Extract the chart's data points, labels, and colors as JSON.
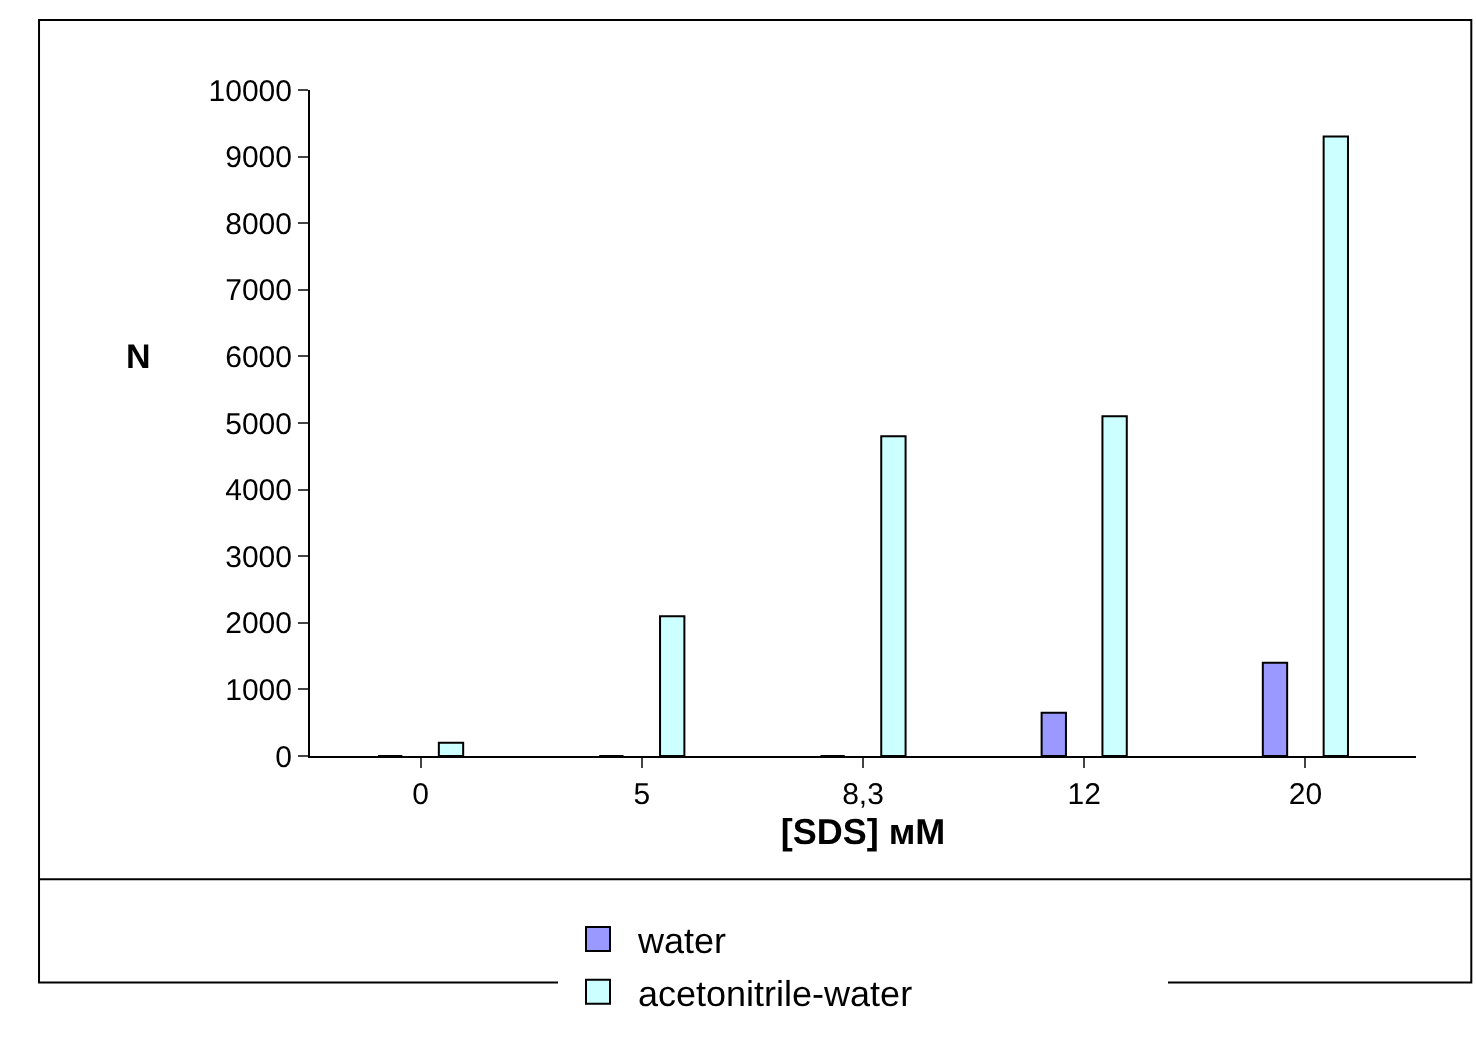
{
  "chart_data": {
    "type": "bar",
    "xlabel": "[SDS] мМ",
    "ylabel": "N",
    "categories": [
      "0",
      "5",
      "8,3",
      "12",
      "20"
    ],
    "series": [
      {
        "name": "water",
        "color": "#9999ff",
        "values": [
          0,
          0,
          0,
          650,
          1400
        ]
      },
      {
        "name": "acetonitrile-water",
        "color": "#ccffff",
        "values": [
          200,
          2100,
          4800,
          5100,
          9300
        ]
      }
    ],
    "ylim": [
      0,
      10000
    ],
    "yticks": [
      0,
      1000,
      2000,
      3000,
      4000,
      5000,
      6000,
      7000,
      8000,
      9000,
      10000
    ],
    "grid": false,
    "legend": "bottom"
  }
}
